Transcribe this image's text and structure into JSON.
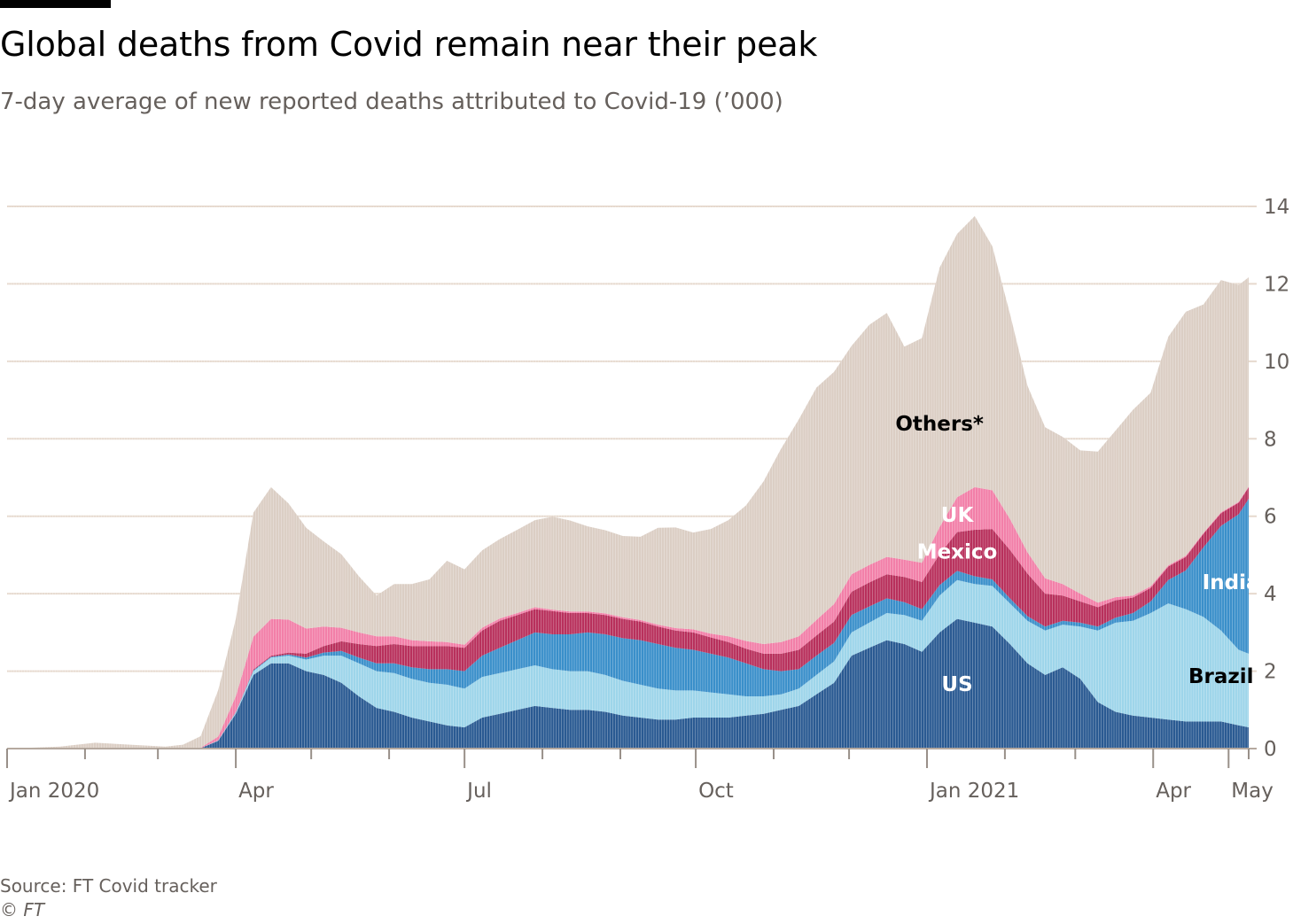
{
  "header": {
    "title": "Global deaths from Covid remain near their peak",
    "subtitle": "7-day average of new reported deaths attributed to Covid-19 (’000)"
  },
  "footer": {
    "source": "Source: FT Covid tracker",
    "copyright": "© FT"
  },
  "colors": {
    "us": "#2a5a92",
    "brazil": "#9dd5ea",
    "india": "#3a8fca",
    "mexico": "#b8305c",
    "uk": "#f27fa8",
    "others": "#dbcec4",
    "gridline": "#e6d9ce",
    "brand_bar": "#000000"
  },
  "chart_data": {
    "type": "area",
    "stacked": true,
    "x_axis_type": "date",
    "xlim": [
      "2020-01-01",
      "2021-05-09"
    ],
    "ylim": [
      0,
      14
    ],
    "y_ticks": [
      "0",
      "2",
      "4",
      "6",
      "8",
      "10",
      "12",
      "14"
    ],
    "y_axis_position": "right",
    "grid": true,
    "x_ticks": [
      {
        "date": "2020-01-01",
        "label": "Jan 2020"
      },
      {
        "date": "2020-04-01",
        "label": "Apr"
      },
      {
        "date": "2020-07-01",
        "label": "Jul"
      },
      {
        "date": "2020-10-01",
        "label": "Oct"
      },
      {
        "date": "2021-01-01",
        "label": "Jan 2021"
      },
      {
        "date": "2021-04-01",
        "label": "Apr"
      },
      {
        "date": "2021-05-01",
        "label": "May"
      }
    ],
    "x_minor_ticks": [
      "2020-02-01",
      "2020-03-01",
      "2020-05-01",
      "2020-06-01",
      "2020-08-01",
      "2020-09-01",
      "2020-11-01",
      "2020-12-01",
      "2021-02-01",
      "2021-03-01",
      "2021-05-09"
    ],
    "x": [
      "2020-01-01",
      "2020-01-22",
      "2020-02-05",
      "2020-02-19",
      "2020-03-04",
      "2020-03-11",
      "2020-03-18",
      "2020-03-25",
      "2020-04-01",
      "2020-04-08",
      "2020-04-15",
      "2020-04-22",
      "2020-04-29",
      "2020-05-06",
      "2020-05-13",
      "2020-05-20",
      "2020-05-27",
      "2020-06-03",
      "2020-06-10",
      "2020-06-17",
      "2020-06-24",
      "2020-07-01",
      "2020-07-08",
      "2020-07-15",
      "2020-07-22",
      "2020-07-29",
      "2020-08-05",
      "2020-08-12",
      "2020-08-19",
      "2020-08-26",
      "2020-09-02",
      "2020-09-09",
      "2020-09-16",
      "2020-09-23",
      "2020-09-30",
      "2020-10-07",
      "2020-10-14",
      "2020-10-21",
      "2020-10-28",
      "2020-11-04",
      "2020-11-11",
      "2020-11-18",
      "2020-11-25",
      "2020-12-02",
      "2020-12-09",
      "2020-12-16",
      "2020-12-23",
      "2020-12-30",
      "2021-01-06",
      "2021-01-13",
      "2021-01-20",
      "2021-01-27",
      "2021-02-03",
      "2021-02-10",
      "2021-02-17",
      "2021-02-24",
      "2021-03-03",
      "2021-03-10",
      "2021-03-17",
      "2021-03-24",
      "2021-03-31",
      "2021-04-07",
      "2021-04-14",
      "2021-04-21",
      "2021-04-28",
      "2021-05-05",
      "2021-05-09"
    ],
    "series": [
      {
        "name": "US",
        "key": "us",
        "values": [
          0,
          0,
          0,
          0,
          0,
          0,
          0.01,
          0.2,
          0.9,
          1.9,
          2.2,
          2.2,
          2.0,
          1.9,
          1.7,
          1.35,
          1.05,
          0.95,
          0.8,
          0.7,
          0.6,
          0.55,
          0.8,
          0.9,
          1.0,
          1.1,
          1.05,
          1.0,
          1.0,
          0.95,
          0.85,
          0.8,
          0.75,
          0.75,
          0.8,
          0.8,
          0.8,
          0.85,
          0.9,
          1.0,
          1.1,
          1.4,
          1.7,
          2.4,
          2.6,
          2.8,
          2.7,
          2.5,
          3.0,
          3.35,
          3.25,
          3.15,
          2.7,
          2.2,
          1.9,
          2.1,
          1.8,
          1.2,
          0.95,
          0.85,
          0.8,
          0.75,
          0.7,
          0.7,
          0.7,
          0.6,
          0.55
        ]
      },
      {
        "name": "Brazil",
        "key": "brazil",
        "values": [
          0,
          0,
          0,
          0,
          0,
          0,
          0,
          0.01,
          0.03,
          0.1,
          0.15,
          0.2,
          0.3,
          0.5,
          0.7,
          0.85,
          0.95,
          1.0,
          1.0,
          1.0,
          1.05,
          1.0,
          1.05,
          1.05,
          1.05,
          1.05,
          1.0,
          1.0,
          1.0,
          0.95,
          0.9,
          0.85,
          0.8,
          0.75,
          0.7,
          0.65,
          0.6,
          0.5,
          0.45,
          0.4,
          0.45,
          0.5,
          0.55,
          0.6,
          0.65,
          0.7,
          0.75,
          0.8,
          0.95,
          1.0,
          1.0,
          1.05,
          1.05,
          1.1,
          1.15,
          1.1,
          1.35,
          1.85,
          2.3,
          2.45,
          2.7,
          3.0,
          2.9,
          2.7,
          2.35,
          1.95,
          1.9
        ]
      },
      {
        "name": "India",
        "key": "india",
        "values": [
          0,
          0,
          0,
          0,
          0,
          0,
          0,
          0,
          0.01,
          0.02,
          0.02,
          0.03,
          0.05,
          0.08,
          0.12,
          0.15,
          0.2,
          0.25,
          0.3,
          0.35,
          0.4,
          0.45,
          0.55,
          0.65,
          0.75,
          0.85,
          0.9,
          0.95,
          1.0,
          1.05,
          1.1,
          1.15,
          1.15,
          1.1,
          1.05,
          1.0,
          0.95,
          0.85,
          0.7,
          0.6,
          0.5,
          0.5,
          0.48,
          0.45,
          0.42,
          0.38,
          0.33,
          0.3,
          0.27,
          0.24,
          0.2,
          0.17,
          0.13,
          0.12,
          0.1,
          0.1,
          0.1,
          0.1,
          0.13,
          0.2,
          0.3,
          0.6,
          1.0,
          1.8,
          2.7,
          3.5,
          4.0
        ]
      },
      {
        "name": "Mexico",
        "key": "mexico",
        "values": [
          0,
          0,
          0,
          0,
          0,
          0,
          0,
          0,
          0.01,
          0.02,
          0.03,
          0.05,
          0.1,
          0.17,
          0.25,
          0.35,
          0.45,
          0.5,
          0.55,
          0.6,
          0.6,
          0.6,
          0.65,
          0.7,
          0.65,
          0.6,
          0.6,
          0.55,
          0.5,
          0.5,
          0.5,
          0.48,
          0.45,
          0.45,
          0.45,
          0.42,
          0.4,
          0.38,
          0.4,
          0.45,
          0.5,
          0.52,
          0.55,
          0.6,
          0.62,
          0.62,
          0.65,
          0.7,
          0.8,
          1.0,
          1.2,
          1.3,
          1.25,
          1.1,
          0.85,
          0.65,
          0.55,
          0.5,
          0.45,
          0.4,
          0.35,
          0.35,
          0.35,
          0.35,
          0.33,
          0.3,
          0.3
        ]
      },
      {
        "name": "UK",
        "key": "uk",
        "values": [
          0,
          0,
          0,
          0,
          0,
          0,
          0.01,
          0.1,
          0.4,
          0.85,
          0.95,
          0.85,
          0.65,
          0.5,
          0.35,
          0.3,
          0.25,
          0.2,
          0.15,
          0.12,
          0.1,
          0.08,
          0.07,
          0.06,
          0.05,
          0.05,
          0.04,
          0.04,
          0.04,
          0.04,
          0.04,
          0.04,
          0.05,
          0.06,
          0.08,
          0.1,
          0.15,
          0.2,
          0.25,
          0.3,
          0.35,
          0.4,
          0.45,
          0.45,
          0.45,
          0.45,
          0.45,
          0.5,
          0.7,
          0.9,
          1.1,
          1.0,
          0.8,
          0.55,
          0.4,
          0.3,
          0.2,
          0.12,
          0.08,
          0.05,
          0.04,
          0.03,
          0.03,
          0.02,
          0.02,
          0.02,
          0.02
        ]
      },
      {
        "name": "Others*",
        "key": "others",
        "values": [
          0,
          0.05,
          0.15,
          0.1,
          0.05,
          0.1,
          0.3,
          1.2,
          2.0,
          3.2,
          3.4,
          3.0,
          2.6,
          2.2,
          1.9,
          1.45,
          1.05,
          1.35,
          1.45,
          1.6,
          2.1,
          1.95,
          2.0,
          2.05,
          2.15,
          2.25,
          2.4,
          2.35,
          2.2,
          2.15,
          2.1,
          2.15,
          2.5,
          2.6,
          2.5,
          2.7,
          3.0,
          3.5,
          4.2,
          5.0,
          5.6,
          6.0,
          6.0,
          5.9,
          6.2,
          6.3,
          5.5,
          5.8,
          6.7,
          6.8,
          7.0,
          6.3,
          5.3,
          4.3,
          3.9,
          3.8,
          3.7,
          3.9,
          4.3,
          4.8,
          5.0,
          5.9,
          6.3,
          5.9,
          6.0,
          5.6,
          5.4
        ]
      }
    ]
  }
}
